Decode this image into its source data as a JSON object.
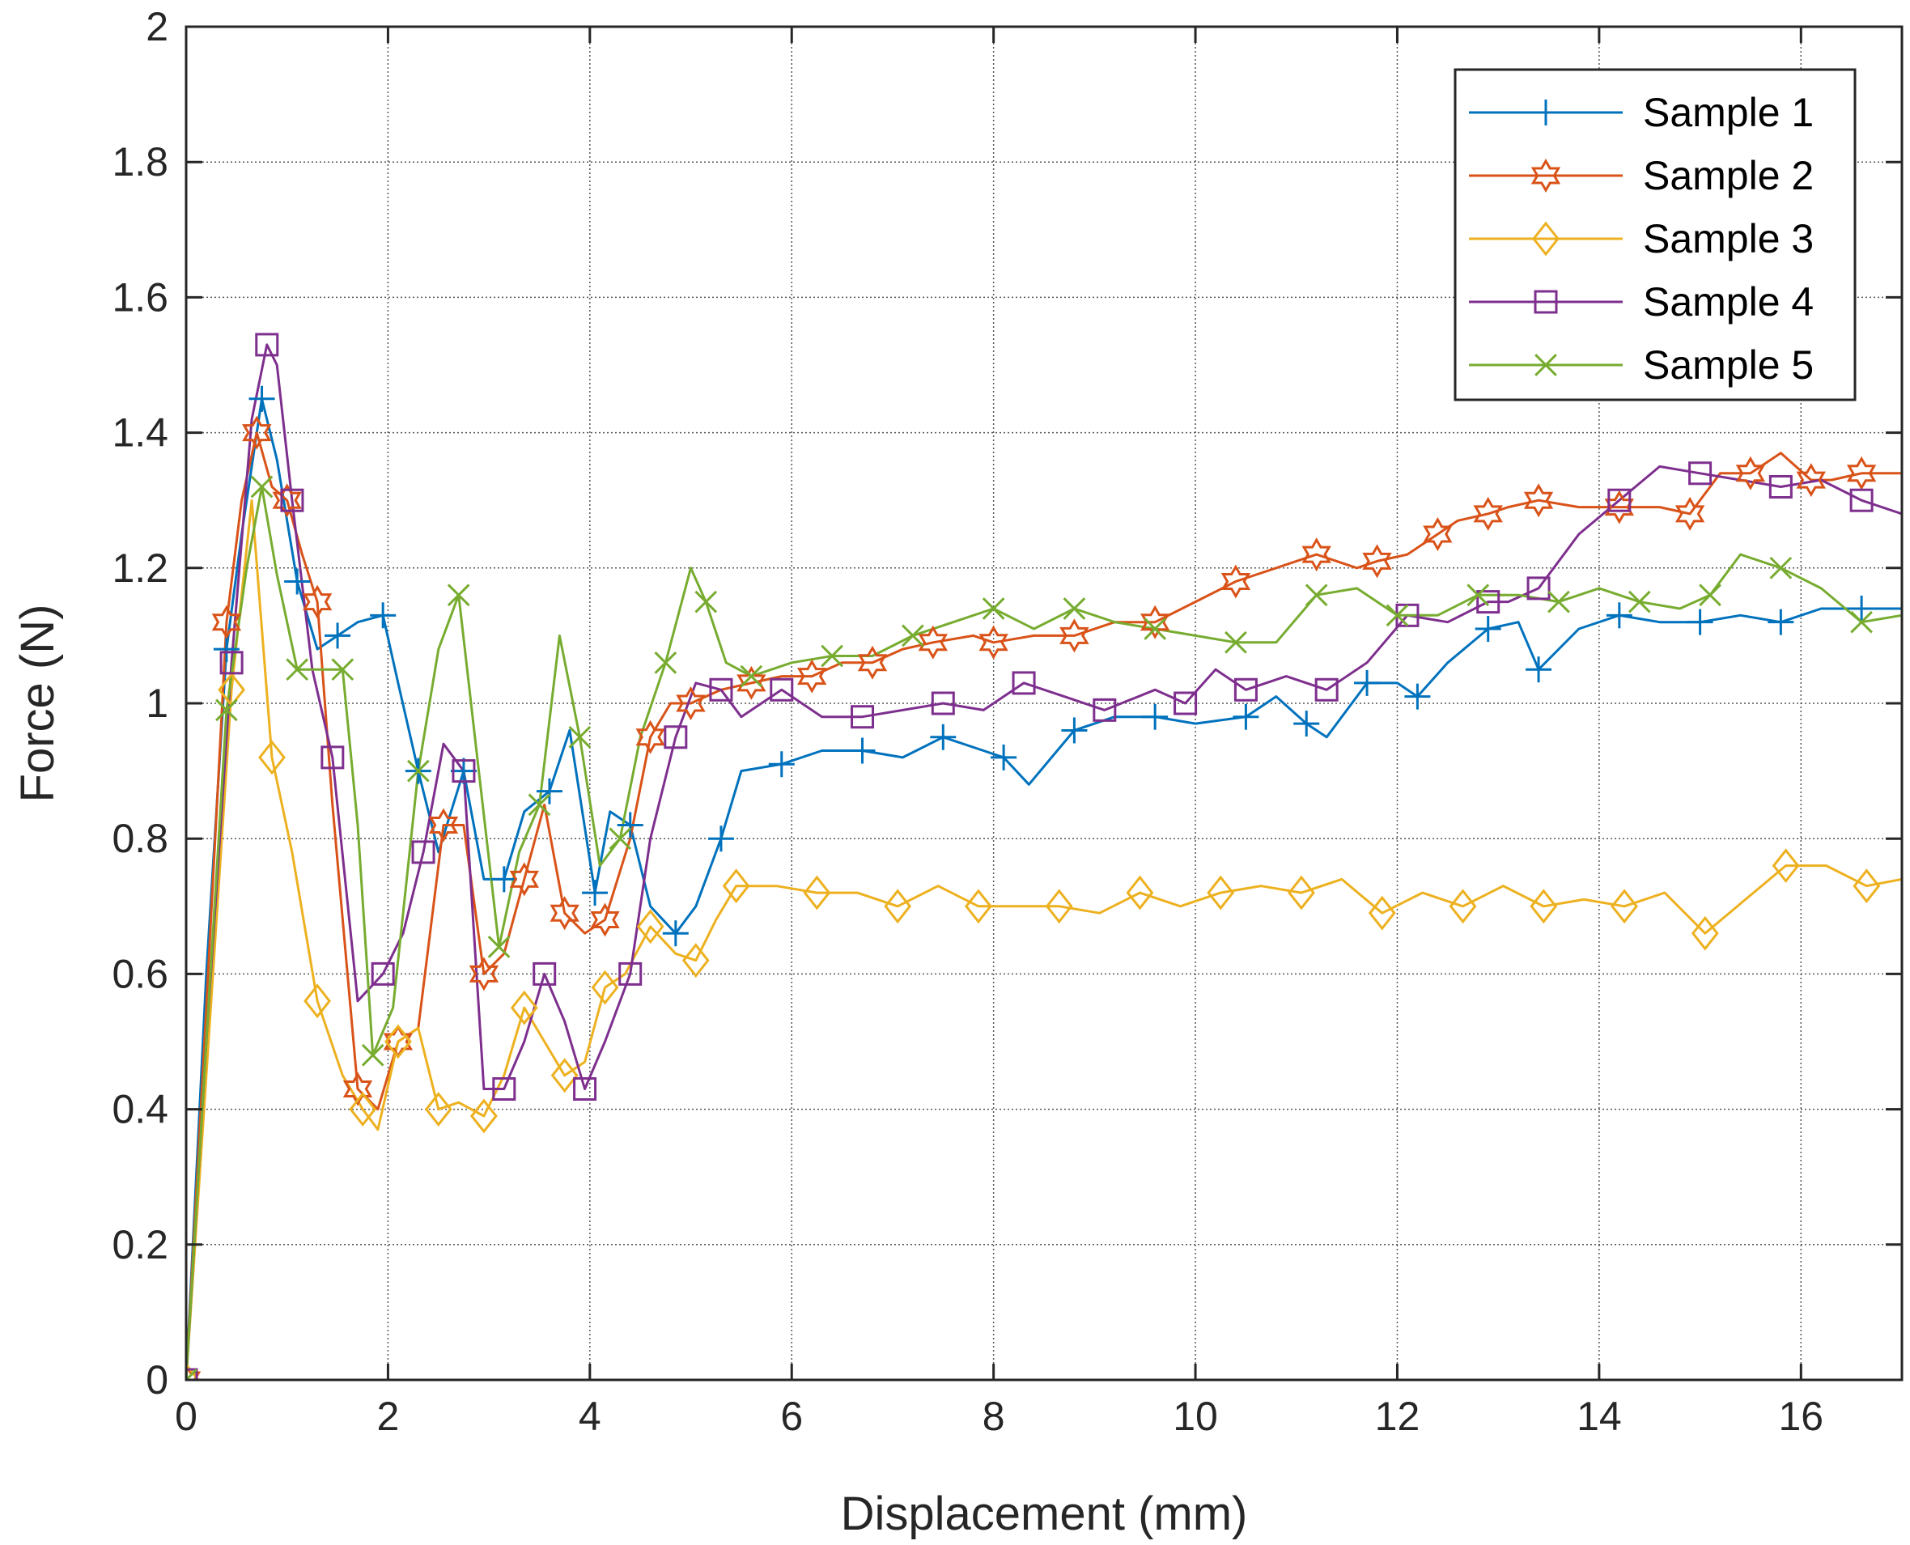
{
  "chart_data": {
    "type": "line",
    "title": "",
    "xlabel": "Displacement (mm)",
    "ylabel": "Force (N)",
    "xlim": [
      0,
      17
    ],
    "ylim": [
      0,
      2
    ],
    "xticks": [
      0,
      2,
      4,
      6,
      8,
      10,
      12,
      14,
      16
    ],
    "yticks": [
      0,
      0.2,
      0.4,
      0.6,
      0.8,
      1,
      1.2,
      1.4,
      1.6,
      1.8,
      2
    ],
    "xtick_labels": [
      "0",
      "2",
      "4",
      "6",
      "8",
      "10",
      "12",
      "14",
      "16"
    ],
    "ytick_labels": [
      "0",
      "0.2",
      "0.4",
      "0.6",
      "0.8",
      "1",
      "1.2",
      "1.4",
      "1.6",
      "1.8",
      "2"
    ],
    "grid": true,
    "legend_position": "top-right",
    "series": [
      {
        "name": "Sample 1",
        "color": "#0072BD",
        "marker": "plus",
        "x": [
          0,
          0.2,
          0.4,
          0.55,
          0.75,
          0.9,
          1.1,
          1.3,
          1.5,
          1.7,
          1.95,
          2.1,
          2.3,
          2.5,
          2.75,
          2.95,
          3.15,
          3.35,
          3.6,
          3.8,
          4.05,
          4.2,
          4.4,
          4.6,
          4.85,
          5.05,
          5.3,
          5.5,
          5.9,
          6.3,
          6.7,
          7.1,
          7.5,
          7.9,
          8.1,
          8.35,
          8.8,
          9.2,
          9.6,
          10.0,
          10.5,
          10.8,
          11.1,
          11.3,
          11.7,
          12.0,
          12.2,
          12.5,
          12.9,
          13.2,
          13.4,
          13.8,
          14.2,
          14.6,
          15.0,
          15.4,
          15.8,
          16.2,
          16.6,
          17.0
        ],
        "y": [
          0,
          0.6,
          1.08,
          1.25,
          1.45,
          1.36,
          1.18,
          1.08,
          1.1,
          1.12,
          1.13,
          1.03,
          0.9,
          0.78,
          0.9,
          0.74,
          0.74,
          0.84,
          0.87,
          0.96,
          0.72,
          0.84,
          0.82,
          0.7,
          0.66,
          0.7,
          0.8,
          0.9,
          0.91,
          0.93,
          0.93,
          0.92,
          0.95,
          0.93,
          0.92,
          0.88,
          0.96,
          0.98,
          0.98,
          0.97,
          0.98,
          1.01,
          0.97,
          0.95,
          1.03,
          1.03,
          1.01,
          1.06,
          1.11,
          1.12,
          1.05,
          1.11,
          1.13,
          1.12,
          1.12,
          1.13,
          1.12,
          1.14,
          1.14,
          1.14
        ]
      },
      {
        "name": "Sample 2",
        "color": "#D95319",
        "marker": "hexagram",
        "x": [
          0,
          0.2,
          0.4,
          0.55,
          0.7,
          0.85,
          1.0,
          1.15,
          1.3,
          1.45,
          1.7,
          1.9,
          2.1,
          2.3,
          2.55,
          2.75,
          2.95,
          3.15,
          3.35,
          3.55,
          3.75,
          3.95,
          4.15,
          4.4,
          4.6,
          4.8,
          5.0,
          5.3,
          5.6,
          5.9,
          6.2,
          6.5,
          6.8,
          7.1,
          7.4,
          7.8,
          8.0,
          8.4,
          8.8,
          9.2,
          9.6,
          10.0,
          10.4,
          10.8,
          11.2,
          11.6,
          11.8,
          12.1,
          12.4,
          12.6,
          12.9,
          13.1,
          13.4,
          13.8,
          14.2,
          14.6,
          14.9,
          15.2,
          15.5,
          15.8,
          16.1,
          16.3,
          16.6,
          17.0
        ],
        "y": [
          0,
          0.55,
          1.12,
          1.3,
          1.4,
          1.32,
          1.3,
          1.22,
          1.15,
          0.85,
          0.43,
          0.4,
          0.5,
          0.52,
          0.82,
          0.82,
          0.6,
          0.63,
          0.74,
          0.85,
          0.69,
          0.66,
          0.68,
          0.8,
          0.95,
          1.0,
          1.0,
          1.02,
          1.03,
          1.04,
          1.04,
          1.06,
          1.06,
          1.08,
          1.09,
          1.1,
          1.09,
          1.1,
          1.1,
          1.12,
          1.12,
          1.15,
          1.18,
          1.2,
          1.22,
          1.2,
          1.21,
          1.22,
          1.25,
          1.27,
          1.28,
          1.29,
          1.3,
          1.29,
          1.29,
          1.29,
          1.28,
          1.34,
          1.34,
          1.37,
          1.33,
          1.33,
          1.34,
          1.34
        ]
      },
      {
        "name": "Sample 3",
        "color": "#EDB120",
        "marker": "diamond",
        "x": [
          0,
          0.2,
          0.45,
          0.65,
          0.85,
          1.05,
          1.3,
          1.55,
          1.75,
          1.9,
          2.1,
          2.3,
          2.5,
          2.7,
          2.95,
          3.15,
          3.35,
          3.55,
          3.75,
          3.95,
          4.15,
          4.35,
          4.6,
          4.85,
          5.05,
          5.25,
          5.45,
          5.85,
          6.25,
          6.65,
          7.05,
          7.45,
          7.85,
          8.25,
          8.65,
          9.05,
          9.45,
          9.85,
          10.25,
          10.65,
          11.05,
          11.45,
          11.85,
          12.25,
          12.65,
          13.05,
          13.45,
          13.85,
          14.25,
          14.65,
          15.05,
          15.45,
          15.85,
          16.25,
          16.65,
          17.0
        ],
        "y": [
          0,
          0.45,
          1.02,
          1.3,
          0.92,
          0.78,
          0.56,
          0.45,
          0.4,
          0.37,
          0.5,
          0.52,
          0.4,
          0.41,
          0.39,
          0.45,
          0.55,
          0.5,
          0.45,
          0.47,
          0.58,
          0.6,
          0.67,
          0.63,
          0.62,
          0.68,
          0.73,
          0.73,
          0.72,
          0.72,
          0.7,
          0.73,
          0.7,
          0.7,
          0.7,
          0.69,
          0.72,
          0.7,
          0.72,
          0.73,
          0.72,
          0.74,
          0.69,
          0.72,
          0.7,
          0.73,
          0.7,
          0.71,
          0.7,
          0.72,
          0.66,
          0.71,
          0.76,
          0.76,
          0.73,
          0.74
        ]
      },
      {
        "name": "Sample 4",
        "color": "#7E2F8E",
        "marker": "square",
        "x": [
          0,
          0.2,
          0.45,
          0.65,
          0.8,
          0.9,
          1.05,
          1.25,
          1.45,
          1.7,
          1.95,
          2.15,
          2.35,
          2.55,
          2.75,
          2.95,
          3.15,
          3.35,
          3.55,
          3.75,
          3.95,
          4.15,
          4.4,
          4.6,
          4.85,
          5.05,
          5.3,
          5.5,
          5.9,
          6.3,
          6.7,
          7.1,
          7.5,
          7.9,
          8.3,
          8.7,
          9.1,
          9.6,
          9.9,
          10.2,
          10.5,
          10.9,
          11.3,
          11.7,
          12.1,
          12.5,
          12.9,
          13.1,
          13.4,
          13.8,
          14.2,
          14.6,
          15.0,
          15.4,
          15.8,
          16.2,
          16.6,
          17.0
        ],
        "y": [
          0,
          0.5,
          1.06,
          1.42,
          1.53,
          1.5,
          1.3,
          1.05,
          0.92,
          0.56,
          0.6,
          0.66,
          0.78,
          0.94,
          0.9,
          0.43,
          0.43,
          0.5,
          0.6,
          0.53,
          0.43,
          0.5,
          0.6,
          0.8,
          0.95,
          1.03,
          1.02,
          0.98,
          1.02,
          0.98,
          0.98,
          0.99,
          1.0,
          0.99,
          1.03,
          1.01,
          0.99,
          1.02,
          1.0,
          1.05,
          1.02,
          1.04,
          1.02,
          1.06,
          1.13,
          1.12,
          1.15,
          1.15,
          1.17,
          1.25,
          1.3,
          1.35,
          1.34,
          1.33,
          1.32,
          1.33,
          1.3,
          1.28
        ]
      },
      {
        "name": "Sample 5",
        "color": "#77AC30",
        "marker": "x",
        "x": [
          0,
          0.2,
          0.4,
          0.6,
          0.75,
          0.9,
          1.1,
          1.35,
          1.55,
          1.7,
          1.85,
          2.05,
          2.3,
          2.5,
          2.7,
          2.9,
          3.1,
          3.3,
          3.5,
          3.7,
          3.9,
          4.1,
          4.3,
          4.5,
          4.75,
          5.0,
          5.15,
          5.35,
          5.6,
          6.0,
          6.4,
          6.8,
          7.2,
          7.6,
          8.0,
          8.4,
          8.8,
          9.2,
          9.6,
          10.0,
          10.4,
          10.8,
          11.2,
          11.6,
          12.0,
          12.4,
          12.8,
          13.2,
          13.6,
          14.0,
          14.4,
          14.8,
          15.1,
          15.4,
          15.8,
          16.2,
          16.6,
          17.0
        ],
        "y": [
          0,
          0.5,
          0.99,
          1.2,
          1.32,
          1.19,
          1.05,
          1.05,
          1.05,
          0.82,
          0.48,
          0.55,
          0.9,
          1.08,
          1.16,
          0.9,
          0.64,
          0.78,
          0.85,
          1.1,
          0.95,
          0.76,
          0.8,
          0.95,
          1.06,
          1.2,
          1.15,
          1.06,
          1.04,
          1.06,
          1.07,
          1.07,
          1.1,
          1.12,
          1.14,
          1.11,
          1.14,
          1.12,
          1.11,
          1.1,
          1.09,
          1.09,
          1.16,
          1.17,
          1.13,
          1.13,
          1.16,
          1.16,
          1.15,
          1.17,
          1.15,
          1.14,
          1.16,
          1.22,
          1.2,
          1.17,
          1.12,
          1.13
        ]
      }
    ]
  }
}
